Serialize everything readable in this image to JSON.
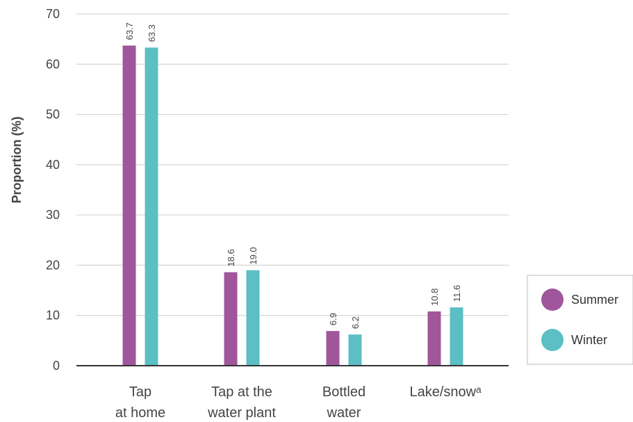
{
  "chart_data": {
    "type": "bar",
    "categories": [
      [
        "Tap",
        "at home"
      ],
      [
        "Tap at the",
        "water plant"
      ],
      [
        "Bottled",
        "water"
      ],
      [
        "Lake/snowᵃ"
      ]
    ],
    "series": [
      {
        "name": "Summer",
        "values": [
          63.7,
          18.6,
          6.9,
          10.8
        ],
        "labels": [
          "63.7",
          "18.6",
          "6.9",
          "10.8"
        ],
        "color": "#a0569b"
      },
      {
        "name": "Winter",
        "values": [
          63.3,
          19.0,
          6.2,
          11.6
        ],
        "labels": [
          "63.3",
          "19.0",
          "6.2",
          "11.6"
        ],
        "color": "#5bbfc3"
      }
    ],
    "ylabel": "Proportion (%)",
    "xlabel": "",
    "ylim": [
      0,
      70
    ],
    "yticks": [
      0,
      10,
      20,
      30,
      40,
      50,
      60,
      70
    ],
    "grid": true,
    "legend_position": "right"
  }
}
